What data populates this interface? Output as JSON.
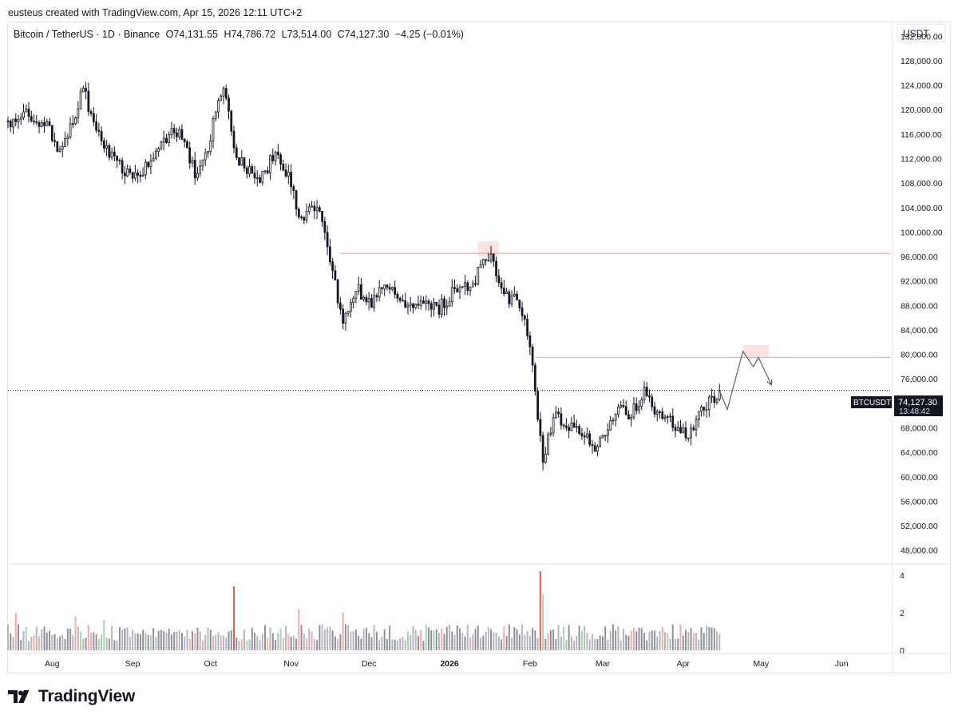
{
  "header": {
    "caption": "eusteus created with TradingView.com, Apr 15, 2026 12:11 UTC+2"
  },
  "legend": {
    "symbol": "Bitcoin / TetherUS · 1D · Binance",
    "open": "O74,131.55",
    "high": "H74,786.72",
    "low": "L73,514.00",
    "close": "C74,127.30",
    "change": "−4.25 (−0.01%)"
  },
  "price_axis": {
    "currency": "USDT",
    "labels": [
      "132,000.00",
      "128,000.00",
      "124,000.00",
      "120,000.00",
      "116,000.00",
      "112,000.00",
      "108,000.00",
      "104,000.00",
      "100,000.00",
      "96,000.00",
      "92,000.00",
      "88,000.00",
      "84,000.00",
      "80,000.00",
      "76,000.00",
      "72,000.00",
      "68,000.00",
      "64,000.00",
      "60,000.00",
      "56,000.00",
      "52,000.00",
      "48,000.00"
    ]
  },
  "volume_axis": {
    "labels": [
      "4",
      "2",
      "0"
    ]
  },
  "time_axis": {
    "labels": [
      "Aug",
      "Sep",
      "Oct",
      "Nov",
      "Dec",
      "2026",
      "Feb",
      "Mar",
      "Apr",
      "May",
      "Jun"
    ]
  },
  "price_tag": {
    "symbol": "BTCUSDT",
    "price": "74,127.30",
    "countdown": "13:48:42"
  },
  "footer": {
    "brand": "TradingView"
  },
  "colors": {
    "candle": "#131722",
    "up_fill": "#ffffff",
    "level_line": "#f7a8a8",
    "highlight": "#fde2e4",
    "vol_gray": "#b2b5be",
    "vol_red": "#f7a8a8",
    "vol_green": "#a5d6a7",
    "vol_red_strong": "#ef5350"
  },
  "chart_data": {
    "type": "candlestick",
    "interval": "1D",
    "ylim": [
      46000,
      134000
    ],
    "price_ticks": [
      132000,
      128000,
      124000,
      120000,
      116000,
      112000,
      108000,
      104000,
      100000,
      96000,
      92000,
      88000,
      84000,
      80000,
      76000,
      72000,
      68000,
      64000,
      60000,
      56000,
      52000,
      48000
    ],
    "volume_ylim": [
      0,
      4.5
    ],
    "volume_ticks": [
      4,
      2,
      0
    ],
    "x_range": [
      "2025-07-15",
      "2026-06-20"
    ],
    "month_ticks": [
      {
        "label": "Aug",
        "date": "2025-08-01"
      },
      {
        "label": "Sep",
        "date": "2025-09-01"
      },
      {
        "label": "Oct",
        "date": "2025-10-01"
      },
      {
        "label": "Nov",
        "date": "2025-11-01"
      },
      {
        "label": "Dec",
        "date": "2025-12-01"
      },
      {
        "label": "2026",
        "date": "2026-01-01"
      },
      {
        "label": "Feb",
        "date": "2026-02-01"
      },
      {
        "label": "Mar",
        "date": "2026-03-01"
      },
      {
        "label": "Apr",
        "date": "2026-04-01"
      },
      {
        "label": "May",
        "date": "2026-05-01"
      },
      {
        "label": "Jun",
        "date": "2026-06-01"
      }
    ],
    "close_path": [
      [
        "2025-07-15",
        118000
      ],
      [
        "2025-07-22",
        119000
      ],
      [
        "2025-07-30",
        117500
      ],
      [
        "2025-08-03",
        113500
      ],
      [
        "2025-08-08",
        117000
      ],
      [
        "2025-08-13",
        123500
      ],
      [
        "2025-08-18",
        116500
      ],
      [
        "2025-08-25",
        112000
      ],
      [
        "2025-09-01",
        108500
      ],
      [
        "2025-09-07",
        111000
      ],
      [
        "2025-09-13",
        115500
      ],
      [
        "2025-09-19",
        116500
      ],
      [
        "2025-09-25",
        109500
      ],
      [
        "2025-09-30",
        114000
      ],
      [
        "2025-10-06",
        124500
      ],
      [
        "2025-10-10",
        113000
      ],
      [
        "2025-10-14",
        111000
      ],
      [
        "2025-10-20",
        108500
      ],
      [
        "2025-10-26",
        113000
      ],
      [
        "2025-10-31",
        109500
      ],
      [
        "2025-11-05",
        101500
      ],
      [
        "2025-11-11",
        105000
      ],
      [
        "2025-11-17",
        94000
      ],
      [
        "2025-11-21",
        84500
      ],
      [
        "2025-11-26",
        91000
      ],
      [
        "2025-12-02",
        88000
      ],
      [
        "2025-12-08",
        92000
      ],
      [
        "2025-12-14",
        88500
      ],
      [
        "2025-12-20",
        88000
      ],
      [
        "2025-12-28",
        87500
      ],
      [
        "2026-01-05",
        91500
      ],
      [
        "2026-01-10",
        90500
      ],
      [
        "2026-01-14",
        96500
      ],
      [
        "2026-01-18",
        95000
      ],
      [
        "2026-01-23",
        89500
      ],
      [
        "2026-01-28",
        88500
      ],
      [
        "2026-01-31",
        83000
      ],
      [
        "2026-02-02",
        77500
      ],
      [
        "2026-02-06",
        63000
      ],
      [
        "2026-02-10",
        70000
      ],
      [
        "2026-02-16",
        68500
      ],
      [
        "2026-02-22",
        67500
      ],
      [
        "2026-02-26",
        65000
      ],
      [
        "2026-03-03",
        68000
      ],
      [
        "2026-03-07",
        72000
      ],
      [
        "2026-03-11",
        69500
      ],
      [
        "2026-03-17",
        74000
      ],
      [
        "2026-03-22",
        70000
      ],
      [
        "2026-03-27",
        69000
      ],
      [
        "2026-03-31",
        67000
      ],
      [
        "2026-04-04",
        67500
      ],
      [
        "2026-04-09",
        71500
      ],
      [
        "2026-04-15",
        74127.3
      ]
    ],
    "volume_markers": [
      {
        "date": "2025-07-18",
        "color": "red",
        "value": 2.0
      },
      {
        "date": "2025-08-10",
        "color": "red",
        "value": 1.8
      },
      {
        "date": "2025-08-21",
        "color": "green",
        "value": 1.6
      },
      {
        "date": "2025-10-10",
        "color": "red",
        "value": 3.4
      },
      {
        "date": "2025-11-04",
        "color": "red",
        "value": 2.2
      },
      {
        "date": "2025-11-21",
        "color": "red",
        "value": 2.0
      },
      {
        "date": "2026-02-05",
        "color": "red",
        "value": 4.2
      },
      {
        "date": "2026-02-06",
        "color": "green",
        "value": 3.0
      }
    ],
    "annotations": {
      "resistance_lines": [
        {
          "price": 96500,
          "from": "2025-11-20"
        },
        {
          "price": 79500,
          "from": "2026-02-03"
        }
      ],
      "highlight_zones": [
        {
          "from": "2026-01-12",
          "to": "2026-01-20",
          "low": 96000,
          "high": 98500
        },
        {
          "from": "2026-04-24",
          "to": "2026-05-04",
          "low": 79500,
          "high": 81500
        }
      ],
      "projection": [
        [
          "2026-04-15",
          74000
        ],
        [
          "2026-04-18",
          71000
        ],
        [
          "2026-04-24",
          80500
        ],
        [
          "2026-04-28",
          78000
        ],
        [
          "2026-04-30",
          79500
        ],
        [
          "2026-05-05",
          75000
        ]
      ],
      "last_price": 74127.3
    }
  }
}
